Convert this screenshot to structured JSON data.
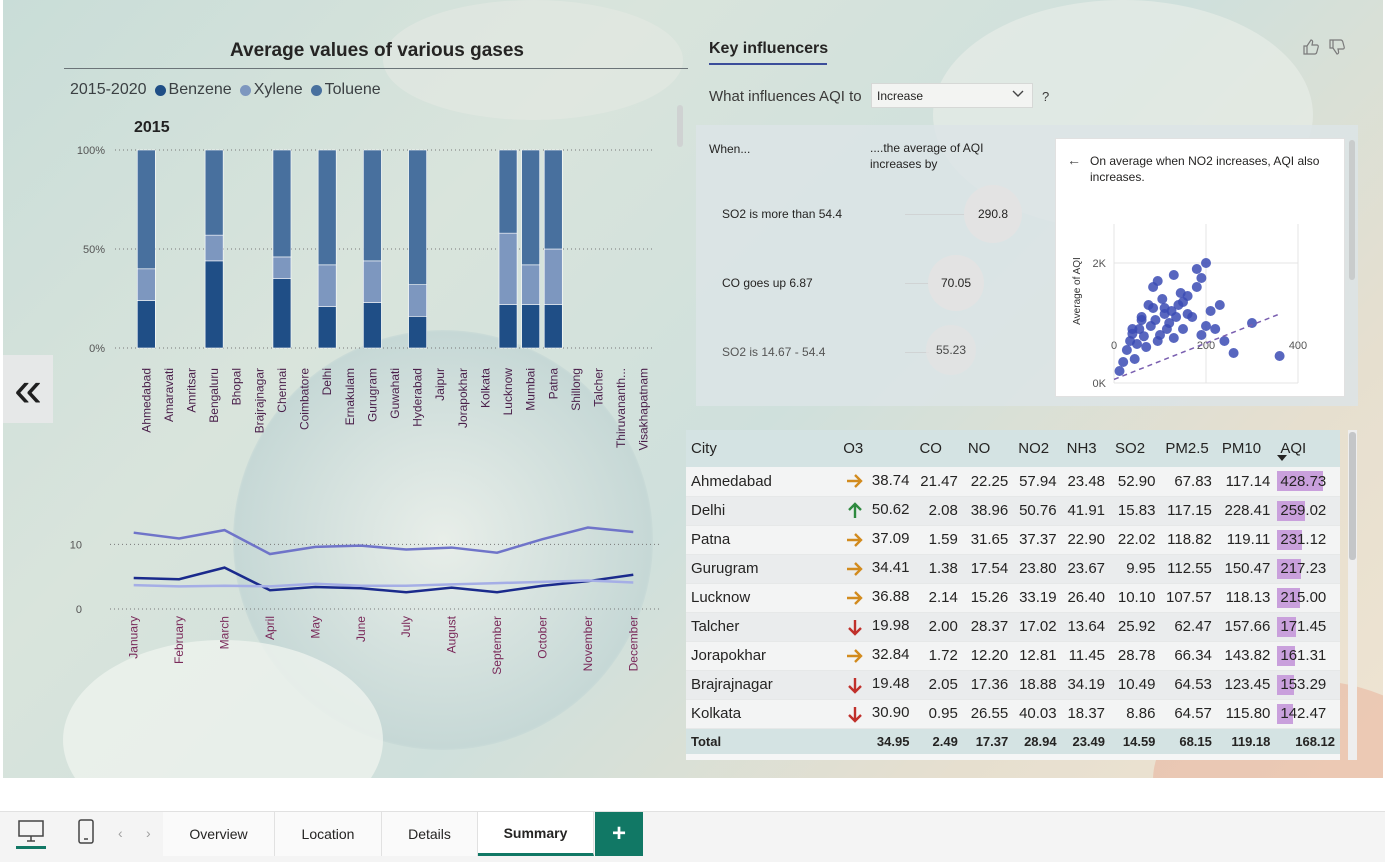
{
  "left_panel": {
    "title": "Average values of various gases",
    "legend_label": "2015-2020",
    "legend_items": [
      {
        "name": "Benzene",
        "color": "#1f4e86"
      },
      {
        "name": "Xylene",
        "color": "#7d97bf"
      },
      {
        "name": "Toluene",
        "color": "#48709e"
      }
    ],
    "year_label": "2015"
  },
  "chart_data": [
    {
      "type": "bar",
      "stacked": "100%",
      "title": "",
      "categories": [
        "Ahmedabad",
        "Amaravati",
        "Amritsar",
        "Bengaluru",
        "Bhopal",
        "Brajrajnagar",
        "Chennai",
        "Coimbatore",
        "Delhi",
        "Ernakulam",
        "Gurugram",
        "Guwahati",
        "Hyderabad",
        "Jaipur",
        "Jorapokhar",
        "Kolkata",
        "Lucknow",
        "Mumbai",
        "Patna",
        "Shillong",
        "Talcher",
        "Thiruvananth...",
        "Visakhapatnam"
      ],
      "series": [
        {
          "name": "Benzene",
          "color": "#1f4e86",
          "values": [
            24,
            null,
            null,
            44,
            null,
            null,
            35,
            null,
            21,
            null,
            23,
            null,
            16,
            null,
            null,
            null,
            22,
            22,
            22,
            null,
            null,
            null,
            null
          ]
        },
        {
          "name": "Xylene",
          "color": "#7d97bf",
          "values": [
            16,
            null,
            null,
            13,
            null,
            null,
            11,
            null,
            21,
            null,
            21,
            null,
            16,
            null,
            null,
            null,
            36,
            20,
            28,
            null,
            null,
            null,
            null
          ]
        },
        {
          "name": "Toluene",
          "color": "#48709e",
          "values": [
            60,
            null,
            null,
            43,
            null,
            null,
            54,
            null,
            58,
            null,
            56,
            null,
            68,
            null,
            null,
            null,
            42,
            58,
            50,
            null,
            null,
            null,
            null
          ]
        }
      ],
      "yticks": [
        "0%",
        "50%",
        "100%"
      ],
      "ylim": [
        0,
        100
      ],
      "grid": true
    },
    {
      "type": "line",
      "title": "",
      "categories": [
        "January",
        "February",
        "March",
        "April",
        "May",
        "June",
        "July",
        "August",
        "September",
        "October",
        "November",
        "December"
      ],
      "series": [
        {
          "name": "Toluene",
          "color": "#6f74c9",
          "values": [
            11.8,
            10.9,
            12.2,
            8.5,
            9.6,
            9.8,
            9.2,
            9.5,
            8.7,
            10.8,
            12.6,
            11.9
          ]
        },
        {
          "name": "Benzene",
          "color": "#1a2a8c",
          "values": [
            4.8,
            4.6,
            6.4,
            2.9,
            3.4,
            3.2,
            2.6,
            3.3,
            2.6,
            3.6,
            4.3,
            5.3
          ]
        },
        {
          "name": "Xylene",
          "color": "#a5aee6",
          "values": [
            3.7,
            3.5,
            3.6,
            3.5,
            3.9,
            3.6,
            3.6,
            3.8,
            4.0,
            4.2,
            4.4,
            4.1
          ]
        }
      ],
      "yticks": [
        "0",
        "10"
      ],
      "ylim": [
        0,
        15
      ],
      "grid": true
    },
    {
      "type": "scatter",
      "title": "",
      "xlabel": "",
      "ylabel": "Average of AQI",
      "xticks": [
        "0",
        "200",
        "400"
      ],
      "yticks": [
        "0K",
        "2K"
      ],
      "xlim": [
        0,
        400
      ],
      "ylim": [
        0,
        2500
      ],
      "trend": {
        "x": [
          0,
          360
        ],
        "y": [
          60,
          1150
        ]
      },
      "points": {
        "x": [
          12,
          20,
          28,
          35,
          40,
          45,
          50,
          55,
          60,
          65,
          70,
          75,
          80,
          85,
          90,
          95,
          100,
          105,
          110,
          115,
          120,
          125,
          130,
          135,
          140,
          145,
          150,
          160,
          170,
          180,
          190,
          200,
          210,
          220,
          230,
          240,
          260,
          300,
          360,
          95,
          130,
          180,
          60,
          110,
          160,
          200,
          40,
          150,
          190,
          85
        ],
        "y": [
          200,
          350,
          550,
          700,
          820,
          400,
          650,
          900,
          1100,
          780,
          600,
          1300,
          950,
          1250,
          1050,
          700,
          800,
          1400,
          1150,
          900,
          1000,
          1200,
          750,
          1100,
          1300,
          1500,
          900,
          1450,
          1100,
          1600,
          800,
          2000,
          1200,
          900,
          1300,
          700,
          500,
          1000,
          450,
          1700,
          1800,
          1900,
          1050,
          1250,
          1150,
          950,
          900,
          1350,
          1750,
          1600
        ]
      }
    }
  ],
  "key_influencers": {
    "title": "Key influencers",
    "question": "What influences AQI to",
    "dropdown_value": "Increase",
    "help": "?",
    "col_when": "When...",
    "col_avg": "....the average of AQI increases by",
    "rows": [
      {
        "label": "SO2 is more than 54.4",
        "value": "290.8"
      },
      {
        "label": "CO goes up 6.87",
        "value": "70.05"
      },
      {
        "label": "SO2 is 14.67 - 54.4",
        "value": "55.23"
      }
    ],
    "detail_text": "On average when NO2 increases, AQI also increases."
  },
  "table": {
    "columns": [
      "City",
      "O3",
      "CO",
      "NO",
      "NO2",
      "NH3",
      "SO2",
      "PM2.5",
      "PM10",
      "AQI"
    ],
    "rows": [
      {
        "city": "Ahmedabad",
        "trend": "right",
        "o3": "38.74",
        "co": "21.47",
        "no": "22.25",
        "no2": "57.94",
        "nh3": "23.48",
        "so2": "52.90",
        "pm25": "67.83",
        "pm10": "117.14",
        "aqi": "428.73",
        "aqi_num": 428.73
      },
      {
        "city": "Delhi",
        "trend": "up",
        "o3": "50.62",
        "co": "2.08",
        "no": "38.96",
        "no2": "50.76",
        "nh3": "41.91",
        "so2": "15.83",
        "pm25": "117.15",
        "pm10": "228.41",
        "aqi": "259.02",
        "aqi_num": 259.02
      },
      {
        "city": "Patna",
        "trend": "right",
        "o3": "37.09",
        "co": "1.59",
        "no": "31.65",
        "no2": "37.37",
        "nh3": "22.90",
        "so2": "22.02",
        "pm25": "118.82",
        "pm10": "119.11",
        "aqi": "231.12",
        "aqi_num": 231.12
      },
      {
        "city": "Gurugram",
        "trend": "right",
        "o3": "34.41",
        "co": "1.38",
        "no": "17.54",
        "no2": "23.80",
        "nh3": "23.67",
        "so2": "9.95",
        "pm25": "112.55",
        "pm10": "150.47",
        "aqi": "217.23",
        "aqi_num": 217.23
      },
      {
        "city": "Lucknow",
        "trend": "right",
        "o3": "36.88",
        "co": "2.14",
        "no": "15.26",
        "no2": "33.19",
        "nh3": "26.40",
        "so2": "10.10",
        "pm25": "107.57",
        "pm10": "118.13",
        "aqi": "215.00",
        "aqi_num": 215.0
      },
      {
        "city": "Talcher",
        "trend": "down",
        "o3": "19.98",
        "co": "2.00",
        "no": "28.37",
        "no2": "17.02",
        "nh3": "13.64",
        "so2": "25.92",
        "pm25": "62.47",
        "pm10": "157.66",
        "aqi": "171.45",
        "aqi_num": 171.45
      },
      {
        "city": "Jorapokhar",
        "trend": "right",
        "o3": "32.84",
        "co": "1.72",
        "no": "12.20",
        "no2": "12.81",
        "nh3": "11.45",
        "so2": "28.78",
        "pm25": "66.34",
        "pm10": "143.82",
        "aqi": "161.31",
        "aqi_num": 161.31
      },
      {
        "city": "Brajrajnagar",
        "trend": "down",
        "o3": "19.48",
        "co": "2.05",
        "no": "17.36",
        "no2": "18.88",
        "nh3": "34.19",
        "so2": "10.49",
        "pm25": "64.53",
        "pm10": "123.45",
        "aqi": "153.29",
        "aqi_num": 153.29
      },
      {
        "city": "Kolkata",
        "trend": "down",
        "o3": "30.90",
        "co": "0.95",
        "no": "26.55",
        "no2": "40.03",
        "nh3": "18.37",
        "so2": "8.86",
        "pm25": "64.57",
        "pm10": "115.80",
        "aqi": "142.47",
        "aqi_num": 142.47
      }
    ],
    "total": {
      "label": "Total",
      "o3": "34.95",
      "co": "2.49",
      "no": "17.37",
      "no2": "28.94",
      "nh3": "23.49",
      "so2": "14.59",
      "pm25": "68.15",
      "pm10": "119.18",
      "aqi": "168.12"
    },
    "aqi_bar_color": "#c9a0dc",
    "trend_colors": {
      "right": "#d28b1e",
      "up": "#2f8a3f",
      "down": "#c0302b"
    }
  },
  "tabs": {
    "items": [
      "Overview",
      "Location",
      "Details",
      "Summary"
    ],
    "active": "Summary",
    "add_label": "+"
  },
  "nav": {
    "collapse_label": "«"
  },
  "colors": {
    "accent": "#117865",
    "ki_accent": "#3b4d9a"
  }
}
